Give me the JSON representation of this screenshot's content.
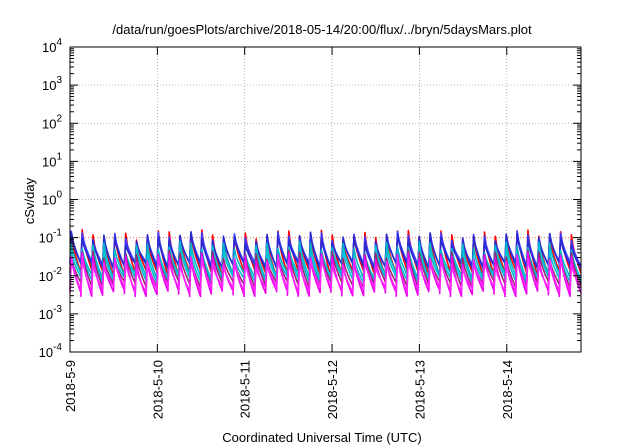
{
  "chart_data": {
    "type": "line",
    "title": "/data/run/goesPlots/archive/2018-05-14/20:00/flux/../bryn/5daysMars.plot",
    "xlabel": "Coordinated Universal Time (UTC)",
    "ylabel": "cSv/day",
    "yscale": "log",
    "ylim": [
      0.0001,
      10000
    ],
    "y_ticks": [
      {
        "base": "10",
        "exp": "-4"
      },
      {
        "base": "10",
        "exp": "-3"
      },
      {
        "base": "10",
        "exp": "-2"
      },
      {
        "base": "10",
        "exp": "-1"
      },
      {
        "base": "10",
        "exp": "0"
      },
      {
        "base": "10",
        "exp": "1"
      },
      {
        "base": "10",
        "exp": "2"
      },
      {
        "base": "10",
        "exp": "3"
      },
      {
        "base": "10",
        "exp": "4"
      }
    ],
    "x_ticks": [
      "2018-5-9",
      "2018-5-10",
      "2018-5-11",
      "2018-5-12",
      "2018-5-13",
      "2018-5-14"
    ],
    "xlim_days": [
      0,
      5.85
    ],
    "grid": true,
    "reference_line": {
      "y": 0.1,
      "color": "#e08060",
      "style": "dotted"
    },
    "series": [
      {
        "color": "#ff0000",
        "peak": 0.12,
        "low": 0.012
      },
      {
        "color": "#3a3aff",
        "peak": 0.11,
        "low": 0.02
      },
      {
        "color": "#2a2ad0",
        "peak": 0.1,
        "low": 0.018
      },
      {
        "color": "#00b8c8",
        "peak": 0.06,
        "low": 0.01
      },
      {
        "color": "#00c0d8",
        "peak": 0.045,
        "low": 0.008
      },
      {
        "color": "#9b2a70",
        "peak": 0.035,
        "low": 0.006
      },
      {
        "color": "#ee00ee",
        "peak": 0.03,
        "low": 0.0035
      },
      {
        "color": "#ff22ff",
        "peak": 0.025,
        "low": 0.0045
      }
    ],
    "cycles_per_day": 8
  }
}
